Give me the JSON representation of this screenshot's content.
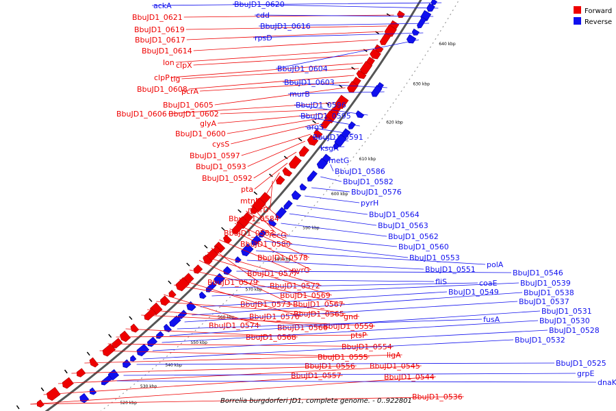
{
  "title": "Borrelia burgdorferi JD1, complete genome. - 0..922801",
  "legend": [
    {
      "label": "Forward",
      "color": "#ee0000"
    },
    {
      "label": "Reverse",
      "color": "#1010ee"
    }
  ],
  "ticks": [
    "520 kbp",
    "530 kbp",
    "540 kbp",
    "550 kbp",
    "560 kbp",
    "570 kbp",
    "580 kbp",
    "590 kbp",
    "600 kbp",
    "610 kbp",
    "620 kbp",
    "630 kbp",
    "640 kbp"
  ],
  "forward_genes": [
    "BbuJD1_0621",
    "BbuJD1_0619",
    "BbuJD1_0617",
    "BbuJD1_0614",
    "lon",
    "clpX",
    "clpP",
    "tig",
    "BbuJD1_0608",
    "pcrA",
    "BbuJD1_0605",
    "BbuJD1_0606",
    "BbuJD1_0602",
    "glyA",
    "BbuJD1_0600",
    "cysS",
    "BbuJD1_0597",
    "BbuJD1_0593",
    "BbuJD1_0592",
    "pta",
    "mtnN",
    "murD",
    "BbuJD1_0584",
    "BbuJD1_0583",
    "recG",
    "BbuJD1_0580",
    "BbuJD1_0578",
    "pyrG",
    "BbuJD1_0577",
    "BbuJD1_0579",
    "BbuJD1_0572",
    "BbuJD1_0569",
    "BbuJD1_0573",
    "BbuJD1_0567",
    "BbuJD1_0570",
    "BbuJD1_0565",
    "BbuJD1_0574",
    "gnd",
    "BbuJD1_0566",
    "BbuJD1_0559",
    "BbuJD1_0568",
    "ptsP",
    "BbuJD1_0554",
    "BbuJD1_0555",
    "ligA",
    "BbuJD1_0556",
    "BbuJD1_0545",
    "BbuJD1_0557",
    "BbuJD1_0544",
    "BbuJD1_0536"
  ],
  "reverse_genes": [
    "ackA",
    "BbuJD1_0620",
    "cdd",
    "BbuJD1_0616",
    "rpsD",
    "BbuJD1_0604",
    "BbuJD1_0603",
    "murB",
    "BbuJD1_0596",
    "BbuJD1_0595",
    "argS",
    "BbuJD1_0591",
    "ksgA",
    "metG",
    "BbuJD1_0586",
    "BbuJD1_0582",
    "BbuJD1_0576",
    "pyrH",
    "BbuJD1_0564",
    "BbuJD1_0563",
    "BbuJD1_0562",
    "BbuJD1_0560",
    "BbuJD1_0553",
    "polA",
    "BbuJD1_0551",
    "BbuJD1_0546",
    "fliS",
    "coaE",
    "BbuJD1_0539",
    "BbuJD1_0549",
    "BbuJD1_0538",
    "BbuJD1_0537",
    "fusA",
    "BbuJD1_0531",
    "BbuJD1_0530",
    "BbuJD1_0528",
    "BbuJD1_0532",
    "BbuJD1_0525",
    "grpE",
    "dnaK"
  ]
}
